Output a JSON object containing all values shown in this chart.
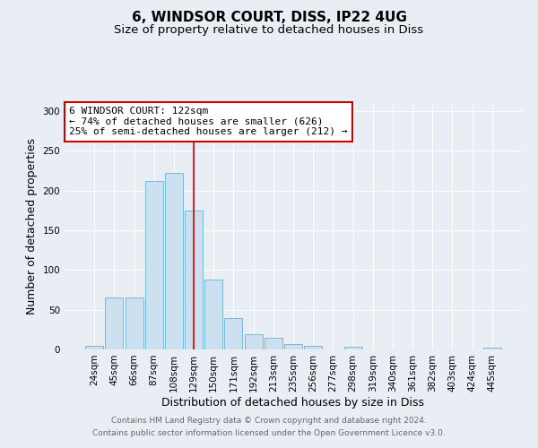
{
  "title": "6, WINDSOR COURT, DISS, IP22 4UG",
  "subtitle": "Size of property relative to detached houses in Diss",
  "xlabel": "Distribution of detached houses by size in Diss",
  "ylabel": "Number of detached properties",
  "categories": [
    "24sqm",
    "45sqm",
    "66sqm",
    "87sqm",
    "108sqm",
    "129sqm",
    "150sqm",
    "171sqm",
    "192sqm",
    "213sqm",
    "235sqm",
    "256sqm",
    "277sqm",
    "298sqm",
    "319sqm",
    "340sqm",
    "361sqm",
    "382sqm",
    "403sqm",
    "424sqm",
    "445sqm"
  ],
  "values": [
    4,
    65,
    65,
    212,
    222,
    175,
    88,
    40,
    19,
    15,
    7,
    5,
    0,
    3,
    0,
    0,
    0,
    0,
    0,
    0,
    2
  ],
  "bar_color": "#cce0f0",
  "bar_edge_color": "#7ab8d9",
  "red_line_x": 5.0,
  "annotation_line1": "6 WINDSOR COURT: 122sqm",
  "annotation_line2": "← 74% of detached houses are smaller (626)",
  "annotation_line3": "25% of semi-detached houses are larger (212) →",
  "annotation_box_color": "white",
  "annotation_box_edge_color": "#cc0000",
  "red_line_color": "#cc0000",
  "footer_line1": "Contains HM Land Registry data © Crown copyright and database right 2024.",
  "footer_line2": "Contains public sector information licensed under the Open Government Licence v3.0.",
  "ylim": [
    0,
    310
  ],
  "background_color": "#e8eef4",
  "title_fontsize": 11,
  "subtitle_fontsize": 9.5,
  "axis_label_fontsize": 9,
  "tick_fontsize": 7.5,
  "footer_fontsize": 6.5,
  "annotation_fontsize": 8
}
